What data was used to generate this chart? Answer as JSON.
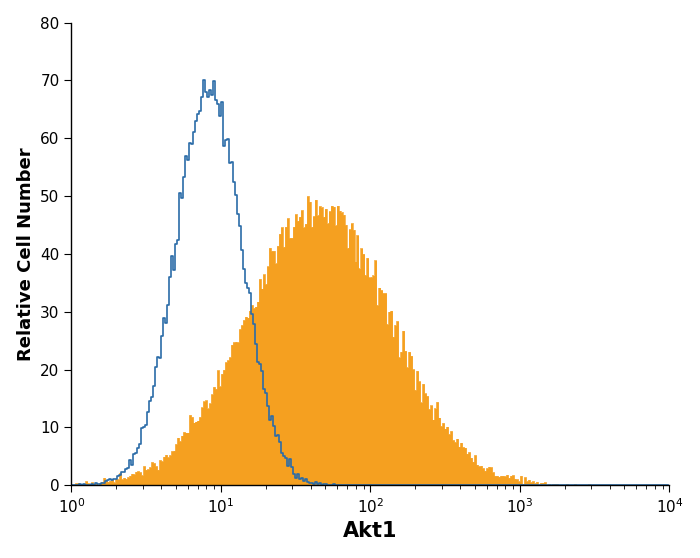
{
  "title": "",
  "xlabel": "Akt1",
  "ylabel": "Relative Cell Number",
  "xlim": [
    1.0,
    10000.0
  ],
  "ylim": [
    0,
    80
  ],
  "yticks": [
    0,
    10,
    20,
    30,
    40,
    50,
    60,
    70,
    80
  ],
  "blue_color": "#2b6ca8",
  "orange_color": "#f5a020",
  "blue_peak_log": 0.92,
  "blue_sigma_log": 0.22,
  "blue_amplitude": 70,
  "orange_peak_log": 1.65,
  "orange_sigma_log": 0.48,
  "orange_amplitude": 50,
  "n_bins": 300,
  "n_samples": 50000,
  "xlabel_fontsize": 15,
  "ylabel_fontsize": 13,
  "tick_fontsize": 11,
  "background_color": "#ffffff",
  "seed_blue": 17,
  "seed_orange": 99
}
